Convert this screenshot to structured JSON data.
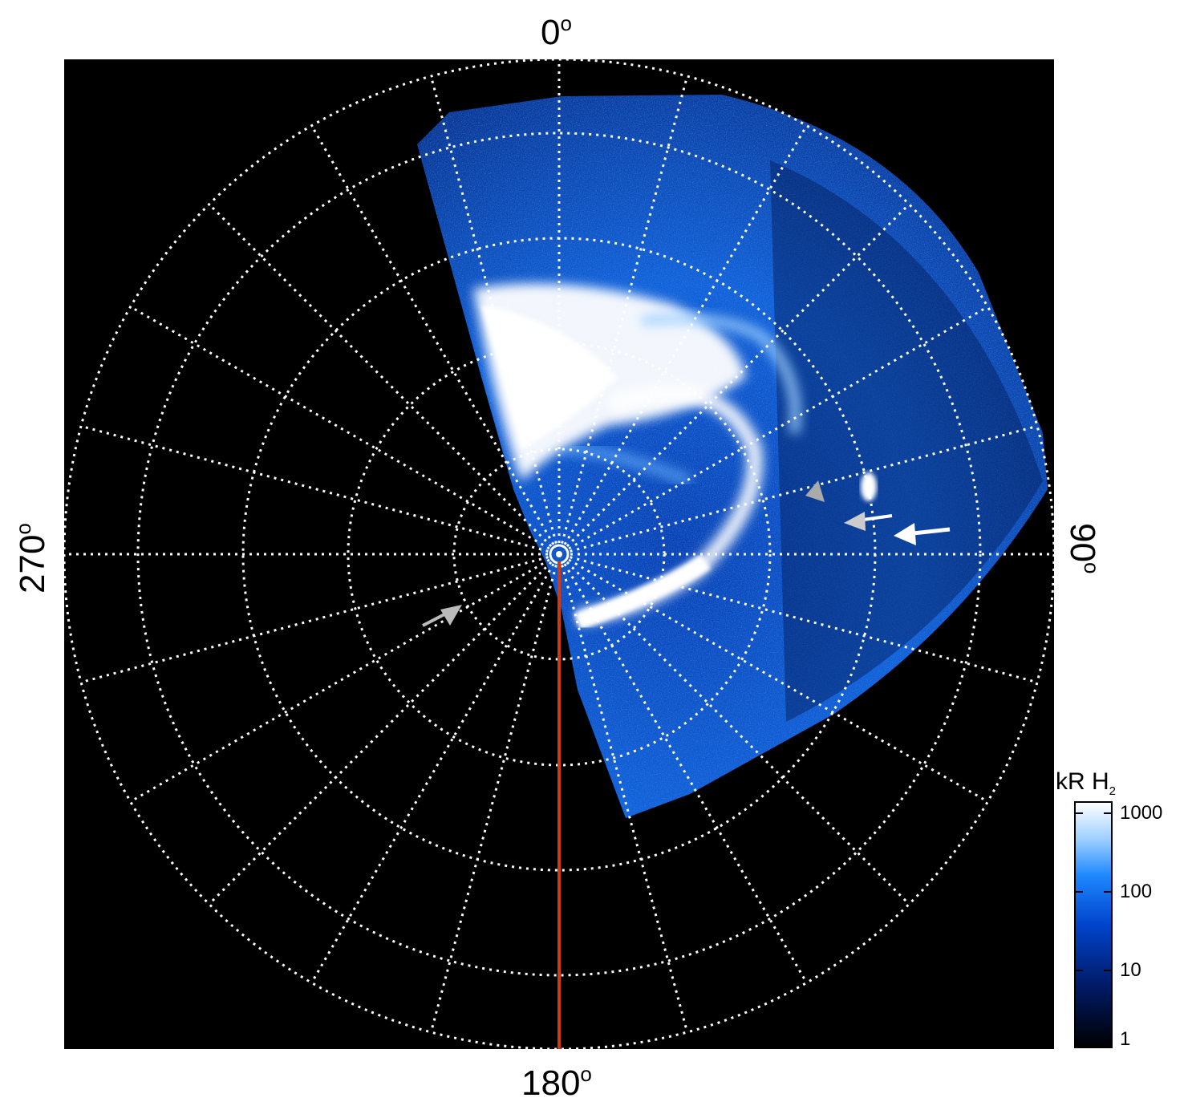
{
  "labels": {
    "top": "0",
    "right": "90",
    "bottom": "180",
    "left": "270",
    "degree": "o"
  },
  "colorbar": {
    "title": "kR H",
    "title_sub": "2",
    "ticks": [
      "1000",
      "100",
      "10",
      "1"
    ],
    "scale": "log",
    "range": [
      1,
      1000
    ],
    "colormap": [
      "#000000",
      "#001a66",
      "#0044cc",
      "#1e88ff",
      "#9fd0ff",
      "#ffffff"
    ]
  },
  "colors": {
    "plot_background": "#000000",
    "grid": "#ffffff",
    "meridian_line": "#d03a10",
    "arrow_white": "#ffffff",
    "arrow_gray": "#bbbbbb"
  }
}
